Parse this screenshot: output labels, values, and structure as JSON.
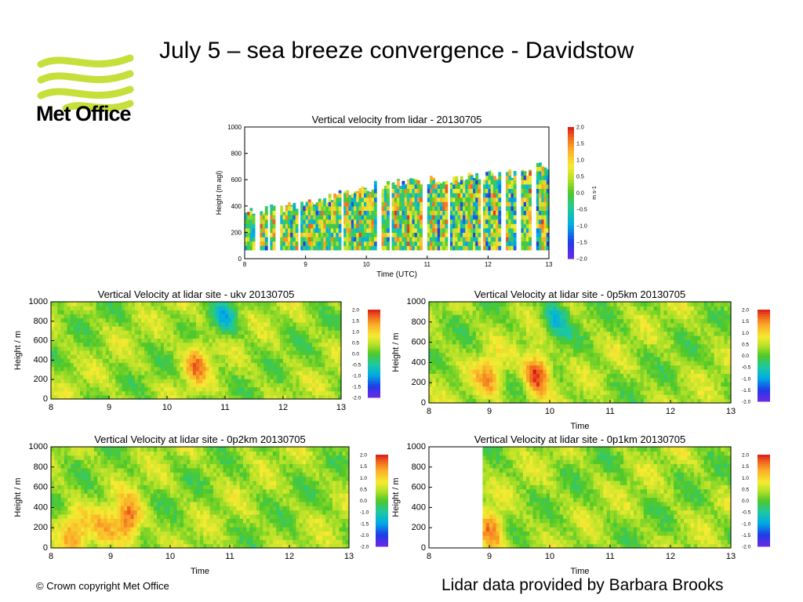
{
  "slide": {
    "title": "July 5 – sea breeze convergence - Davidstow",
    "logo_text": "Met Office",
    "footer_left": "© Crown copyright   Met Office",
    "footer_right": "Lidar data provided by Barbara Brooks"
  },
  "colors": {
    "logo_green": "#c6df3a",
    "accent_text": "#000000"
  },
  "chart_data": [
    {
      "type": "heatmap",
      "id": "lidar",
      "title": "Vertical velocity from lidar - 20130705",
      "xlabel": "Time (UTC)",
      "ylabel": "Height (m agl)",
      "xlim": [
        8,
        13
      ],
      "ylim": [
        0,
        1000
      ],
      "x_ticks": [
        "8",
        "9",
        "10",
        "11",
        "12",
        "13"
      ],
      "y_ticks": [
        "0",
        "200",
        "400",
        "600",
        "800",
        "1000"
      ],
      "colorbar": {
        "ticks": [
          "2.0",
          "1.5",
          "1.0",
          "0.5",
          "0.0",
          "−0.5",
          "−1.0",
          "−1.5",
          "−2.0"
        ],
        "unit": "m s-1",
        "range": [
          -2,
          2
        ]
      },
      "data_top_heights": {
        "x": [
          8.0,
          8.5,
          9.0,
          9.5,
          10.0,
          10.5,
          11.0,
          11.5,
          12.0,
          12.5,
          13.0
        ],
        "top": [
          350,
          380,
          420,
          480,
          540,
          590,
          600,
          620,
          630,
          650,
          720
        ]
      },
      "gaps_x": [
        8.2,
        8.4,
        8.55,
        8.9,
        9.6,
        10.2,
        10.4,
        10.95,
        11.35,
        11.9,
        12.25,
        12.5,
        12.75
      ]
    },
    {
      "type": "heatmap",
      "id": "ukv",
      "title": "Vertical Velocity at lidar site - ukv 20130705",
      "xlabel": "",
      "ylabel": "Height / m",
      "xlim": [
        8,
        13
      ],
      "ylim": [
        0,
        1000
      ],
      "x_ticks": [
        "8",
        "9",
        "10",
        "11",
        "12",
        "13"
      ],
      "y_ticks": [
        "0",
        "200",
        "400",
        "600",
        "800",
        "1000"
      ],
      "colorbar": {
        "ticks": [
          "2.0",
          "1.5",
          "1.0",
          "0.5",
          "0.0",
          "-0.5",
          "-1.0",
          "-1.5",
          "-2.0"
        ],
        "range": [
          -2,
          2
        ]
      },
      "features": [
        {
          "x": 10.5,
          "y": 380,
          "value": 1.4
        },
        {
          "x": 11.0,
          "y": 850,
          "value": -0.5
        }
      ]
    },
    {
      "type": "heatmap",
      "id": "p5km",
      "title": "Vertical Velocity at lidar site - 0p5km 20130705",
      "xlabel": "Time",
      "ylabel": "Height / m",
      "xlim": [
        8,
        13
      ],
      "ylim": [
        0,
        1000
      ],
      "x_ticks": [
        "8",
        "9",
        "10",
        "11",
        "12",
        "13"
      ],
      "y_ticks": [
        "0",
        "200",
        "400",
        "600",
        "800",
        "1000"
      ],
      "colorbar": {
        "ticks": [
          "2.0",
          "1.5",
          "1.0",
          "0.5",
          "0.0",
          "-0.5",
          "-1.0",
          "-1.5",
          "-2.0"
        ],
        "range": [
          -2,
          2
        ]
      },
      "features": [
        {
          "x": 9.0,
          "y": 250,
          "value": 1.3
        },
        {
          "x": 9.8,
          "y": 300,
          "value": 2.0
        },
        {
          "x": 10.1,
          "y": 850,
          "value": -0.7
        }
      ]
    },
    {
      "type": "heatmap",
      "id": "p2km",
      "title": "Vertical Velocity at lidar site - 0p2km 20130705",
      "xlabel": "Time",
      "ylabel": "Height / m",
      "xlim": [
        8,
        13
      ],
      "ylim": [
        0,
        1000
      ],
      "x_ticks": [
        "8",
        "9",
        "10",
        "11",
        "12",
        "13"
      ],
      "y_ticks": [
        "0",
        "200",
        "400",
        "600",
        "800",
        "1000"
      ],
      "colorbar": {
        "ticks": [
          "2.0",
          "1.5",
          "1.0",
          "0.5",
          "0.0",
          "-1.0",
          "-1.5",
          "-2.0",
          "-2.0"
        ],
        "range": [
          -2,
          2
        ]
      },
      "features": [
        {
          "x": 8.4,
          "y": 180,
          "value": 1.3
        },
        {
          "x": 8.9,
          "y": 160,
          "value": 1.0
        },
        {
          "x": 9.3,
          "y": 260,
          "value": 1.8
        }
      ]
    },
    {
      "type": "heatmap",
      "id": "p1km",
      "title": "Vertical Velocity at lidar site - 0p1km 20130705",
      "xlabel": "Time",
      "ylabel": "Height / m",
      "xlim": [
        8,
        13
      ],
      "ylim": [
        0,
        1000
      ],
      "data_start_x": 8.9,
      "x_ticks": [
        "8",
        "9",
        "10",
        "11",
        "12",
        "13"
      ],
      "y_ticks": [
        "0",
        "200",
        "400",
        "600",
        "800",
        "1000"
      ],
      "colorbar": {
        "ticks": [
          "2.0",
          "1.5",
          "1.0",
          "0.5",
          "0.0",
          "-0.5",
          "-1.0",
          "-1.5",
          "-2.0"
        ],
        "range": [
          -2,
          2
        ]
      },
      "features": [
        {
          "x": 9.05,
          "y": 150,
          "value": 1.5
        }
      ]
    }
  ]
}
